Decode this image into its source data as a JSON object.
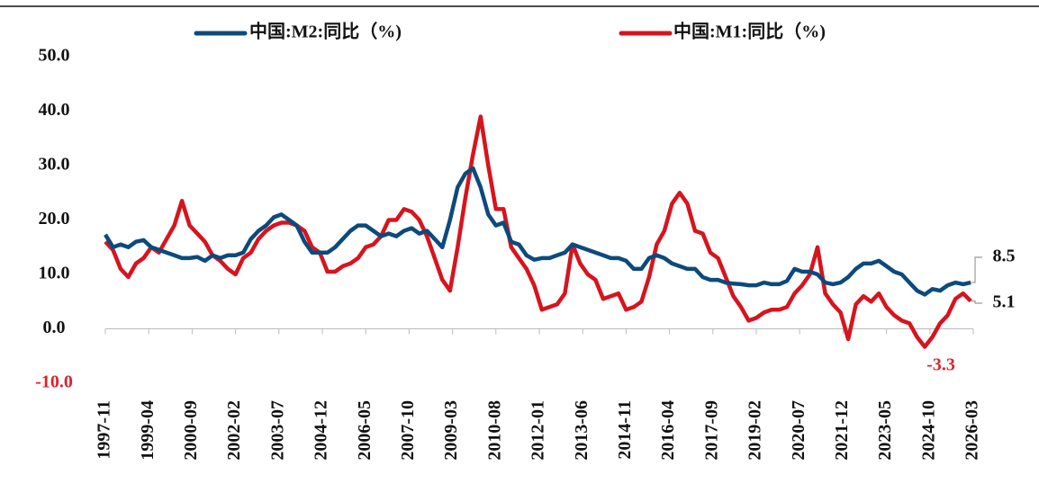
{
  "chart_data": {
    "type": "line",
    "xlim": [
      "1997-11",
      "2026-03"
    ],
    "xticks": [
      "1997-11",
      "1999-04",
      "2000-09",
      "2002-02",
      "2003-07",
      "2004-12",
      "2006-05",
      "2007-10",
      "2009-03",
      "2010-08",
      "2012-01",
      "2013-06",
      "2014-11",
      "2016-04",
      "2017-09",
      "2019-02",
      "2020-07",
      "2021-12",
      "2023-05",
      "2024-10",
      "2026-03"
    ],
    "ylim": [
      -10,
      50
    ],
    "yticks": [
      {
        "value": -10,
        "label": "-10.0"
      },
      {
        "value": 0,
        "label": "0.0"
      },
      {
        "value": 10,
        "label": "10.0"
      },
      {
        "value": 20,
        "label": "20.0"
      },
      {
        "value": 30,
        "label": "30.0"
      },
      {
        "value": 40,
        "label": "40.0"
      },
      {
        "value": 50,
        "label": "50.0"
      }
    ],
    "negative_tick_color": "#e0202a",
    "x": [
      "1997-11",
      "1998-02",
      "1998-05",
      "1998-08",
      "1998-11",
      "1999-02",
      "1999-05",
      "1999-08",
      "1999-11",
      "2000-02",
      "2000-05",
      "2000-08",
      "2000-11",
      "2001-02",
      "2001-05",
      "2001-08",
      "2001-11",
      "2002-02",
      "2002-05",
      "2002-08",
      "2002-11",
      "2003-02",
      "2003-05",
      "2003-08",
      "2003-11",
      "2004-02",
      "2004-05",
      "2004-08",
      "2004-11",
      "2005-02",
      "2005-05",
      "2005-08",
      "2005-11",
      "2006-02",
      "2006-05",
      "2006-08",
      "2006-11",
      "2007-02",
      "2007-05",
      "2007-08",
      "2007-11",
      "2008-02",
      "2008-05",
      "2008-08",
      "2008-11",
      "2009-02",
      "2009-05",
      "2009-08",
      "2009-11",
      "2010-02",
      "2010-05",
      "2010-08",
      "2010-11",
      "2011-02",
      "2011-05",
      "2011-08",
      "2011-11",
      "2012-02",
      "2012-05",
      "2012-08",
      "2012-11",
      "2013-02",
      "2013-05",
      "2013-08",
      "2013-11",
      "2014-02",
      "2014-05",
      "2014-08",
      "2014-11",
      "2015-02",
      "2015-05",
      "2015-08",
      "2015-11",
      "2016-02",
      "2016-05",
      "2016-08",
      "2016-11",
      "2017-02",
      "2017-05",
      "2017-08",
      "2017-11",
      "2018-02",
      "2018-05",
      "2018-08",
      "2018-11",
      "2019-02",
      "2019-05",
      "2019-08",
      "2019-11",
      "2020-02",
      "2020-05",
      "2020-08",
      "2020-11",
      "2021-02",
      "2021-05",
      "2021-08",
      "2021-11",
      "2022-02",
      "2022-05",
      "2022-08",
      "2022-11",
      "2023-02",
      "2023-05",
      "2023-08",
      "2023-11",
      "2024-02",
      "2024-05",
      "2024-08",
      "2024-11",
      "2025-02",
      "2025-05",
      "2025-08",
      "2025-11",
      "2026-02"
    ],
    "series": [
      {
        "name": "中国:M2:同比（%)",
        "color": "#0d4a7c",
        "values": [
          17.3,
          15.0,
          15.5,
          15.0,
          16.0,
          16.3,
          15.0,
          14.5,
          14.0,
          13.5,
          13.0,
          13.0,
          13.2,
          12.5,
          13.5,
          13.0,
          13.5,
          13.5,
          14.0,
          16.5,
          18.0,
          19.0,
          20.5,
          21.0,
          20.0,
          19.0,
          16.0,
          14.0,
          14.0,
          14.0,
          15.0,
          16.5,
          18.0,
          19.0,
          19.0,
          18.0,
          17.0,
          17.5,
          17.0,
          18.0,
          18.5,
          17.5,
          18.0,
          16.5,
          15.0,
          20.0,
          26.0,
          28.5,
          29.5,
          26.0,
          21.0,
          19.0,
          19.5,
          16.0,
          15.5,
          13.5,
          12.7,
          13.0,
          13.0,
          13.5,
          14.0,
          15.5,
          15.0,
          14.5,
          14.0,
          13.5,
          13.0,
          13.0,
          12.5,
          11.0,
          11.0,
          13.0,
          13.5,
          13.0,
          12.0,
          11.5,
          11.0,
          11.0,
          9.5,
          9.0,
          9.0,
          8.5,
          8.3,
          8.2,
          8.0,
          8.0,
          8.5,
          8.2,
          8.2,
          8.8,
          11.0,
          10.5,
          10.5,
          10.0,
          8.5,
          8.2,
          8.5,
          9.5,
          11.0,
          12.0,
          12.0,
          12.5,
          11.5,
          10.5,
          10.0,
          8.5,
          7.0,
          6.3,
          7.3,
          7.0,
          8.0,
          8.5,
          8.2,
          8.5
        ]
      },
      {
        "name": "中国:M1:同比（%)",
        "color": "#d7141e",
        "values": [
          16.0,
          14.5,
          11.0,
          9.5,
          12.0,
          13.0,
          15.0,
          14.0,
          16.5,
          19.0,
          23.5,
          19.0,
          17.5,
          16.0,
          13.5,
          12.5,
          11.0,
          10.0,
          13.0,
          14.0,
          16.5,
          18.0,
          19.0,
          19.5,
          19.5,
          19.0,
          18.0,
          15.0,
          14.0,
          10.5,
          10.5,
          11.5,
          12.0,
          13.0,
          15.0,
          15.5,
          17.0,
          20.0,
          20.0,
          22.0,
          21.5,
          20.0,
          17.0,
          13.0,
          9.0,
          7.0,
          15.0,
          24.0,
          32.0,
          39.0,
          30.0,
          22.0,
          22.0,
          15.0,
          13.0,
          11.0,
          8.0,
          3.5,
          4.0,
          4.5,
          6.5,
          15.5,
          12.0,
          10.0,
          9.0,
          5.5,
          6.0,
          6.5,
          3.5,
          4.0,
          5.0,
          9.5,
          15.5,
          18.0,
          23.0,
          25.0,
          23.0,
          18.0,
          17.5,
          14.0,
          13.0,
          9.5,
          6.0,
          4.0,
          1.5,
          2.0,
          3.0,
          3.5,
          3.5,
          4.0,
          6.5,
          8.0,
          10.0,
          15.0,
          6.5,
          4.5,
          3.0,
          -1.9,
          4.5,
          6.0,
          5.0,
          6.5,
          4.0,
          2.5,
          1.5,
          1.0,
          -1.5,
          -3.3,
          -1.5,
          1.0,
          2.5,
          5.5,
          6.5,
          5.1
        ]
      }
    ],
    "annotations": [
      {
        "text": "8.5",
        "x": "2026-02",
        "y": 8.5,
        "color": "#111111"
      },
      {
        "text": "5.1",
        "x": "2026-02",
        "y": 5.1,
        "color": "#111111"
      },
      {
        "text": "-3.3",
        "x": "2024-08",
        "y": -3.3,
        "color": "#e0202a"
      }
    ]
  }
}
